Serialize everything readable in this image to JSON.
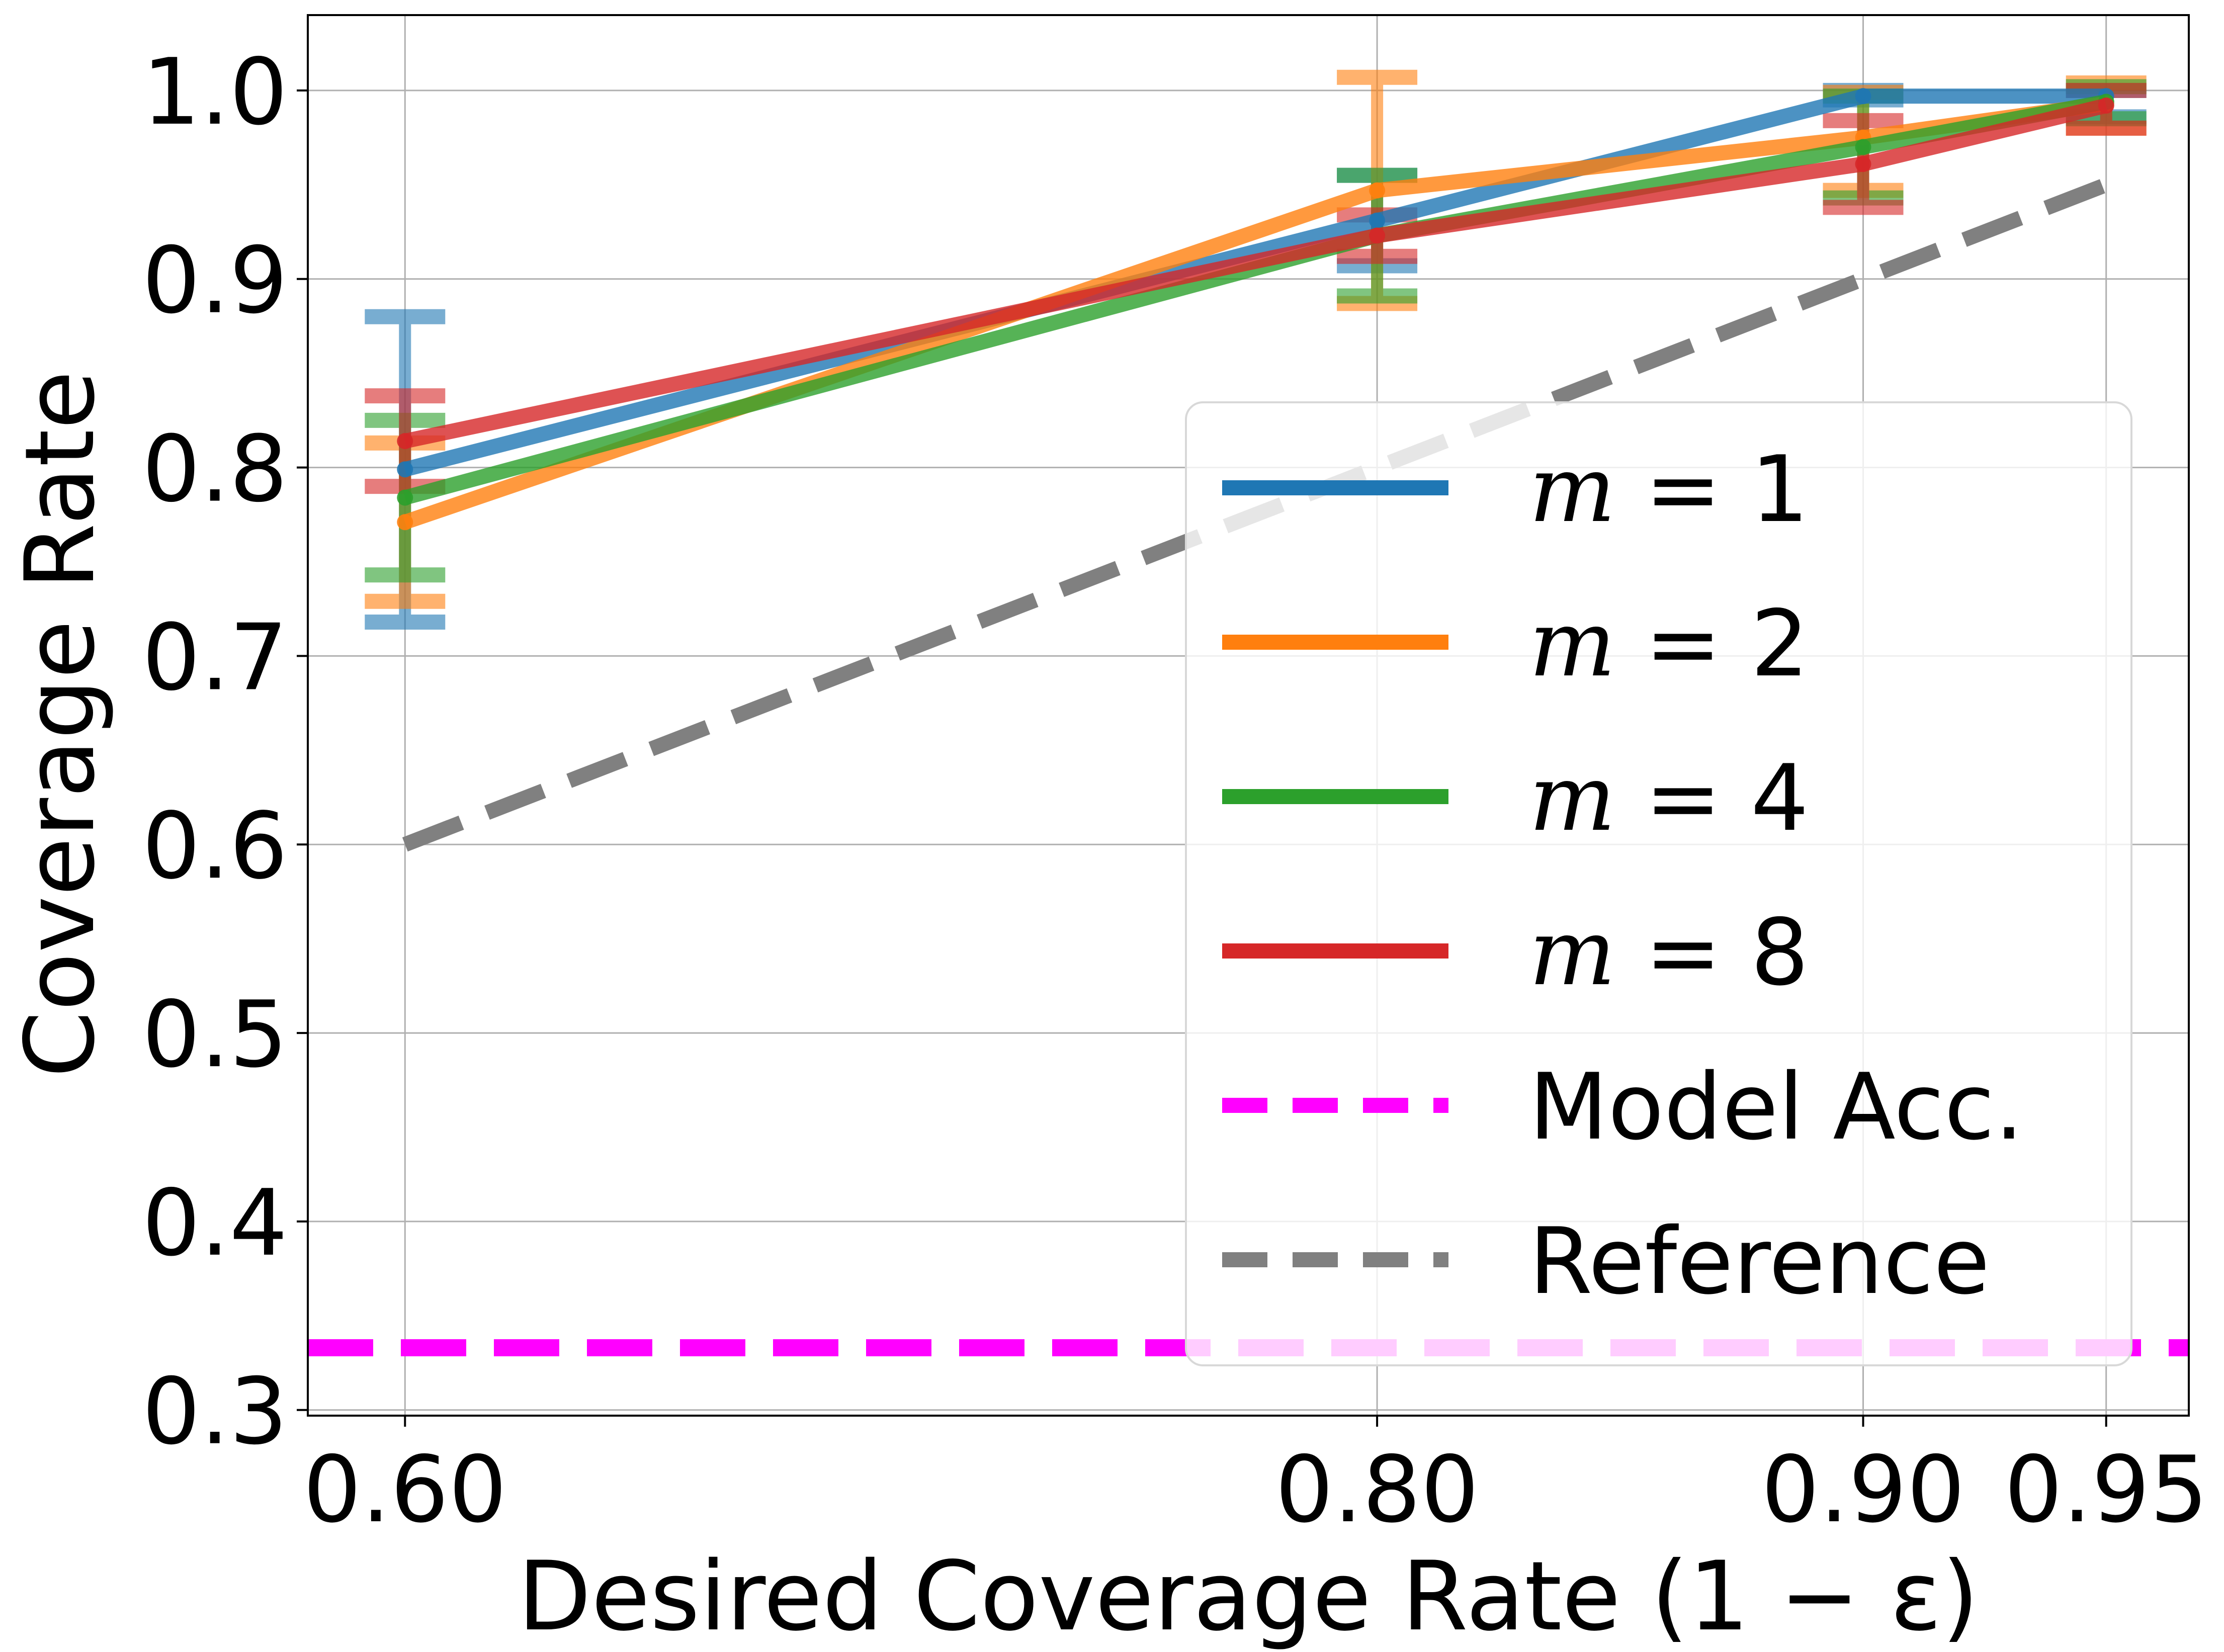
{
  "chart_data": {
    "type": "line",
    "title": "",
    "xlabel": "Desired Coverage Rate (1 − ε)",
    "ylabel": "Coverage Rate",
    "x": [
      0.6,
      0.8,
      0.9,
      0.95
    ],
    "x_tick_labels": [
      "0.60",
      "0.80",
      "0.90",
      "0.95"
    ],
    "y_ticks": [
      0.3,
      0.4,
      0.5,
      0.6,
      0.7,
      0.8,
      0.9,
      1.0
    ],
    "y_tick_labels": [
      "0.3",
      "0.4",
      "0.5",
      "0.6",
      "0.7",
      "0.8",
      "0.9",
      "1.0"
    ],
    "xlim": [
      0.58,
      0.967
    ],
    "ylim": [
      0.297,
      1.04
    ],
    "grid": true,
    "legend_position": "lower-right",
    "series": [
      {
        "name": "m = 1",
        "color": "#1f77b4",
        "values": [
          0.799,
          0.931,
          0.997,
          0.997
        ],
        "err_low": [
          0.718,
          0.907,
          0.995,
          0.986
        ],
        "err_high": [
          0.88,
          0.955,
          1.0,
          1.0
        ]
      },
      {
        "name": "m = 2",
        "color": "#ff7f0e",
        "values": [
          0.771,
          0.947,
          0.975,
          0.993
        ],
        "err_low": [
          0.729,
          0.887,
          0.947,
          0.98
        ],
        "err_high": [
          0.813,
          1.007,
          0.999,
          1.004
        ]
      },
      {
        "name": "m = 4",
        "color": "#2ca02c",
        "values": [
          0.784,
          0.923,
          0.97,
          0.994
        ],
        "err_low": [
          0.743,
          0.891,
          0.943,
          0.985
        ],
        "err_high": [
          0.825,
          0.955,
          0.997,
          1.002
        ]
      },
      {
        "name": "m = 8",
        "color": "#d62728",
        "values": [
          0.814,
          0.923,
          0.961,
          0.992
        ],
        "err_low": [
          0.79,
          0.912,
          0.938,
          0.98
        ],
        "err_high": [
          0.838,
          0.934,
          0.984,
          1.0
        ]
      }
    ],
    "reference": {
      "name": "Reference",
      "color": "#808080",
      "x": [
        0.6,
        0.8,
        0.9,
        0.95
      ],
      "values": [
        0.6,
        0.8,
        0.9,
        0.95
      ]
    },
    "model_accuracy": {
      "name": "Model Acc.",
      "color": "#ff00ff",
      "value": 0.333
    }
  }
}
